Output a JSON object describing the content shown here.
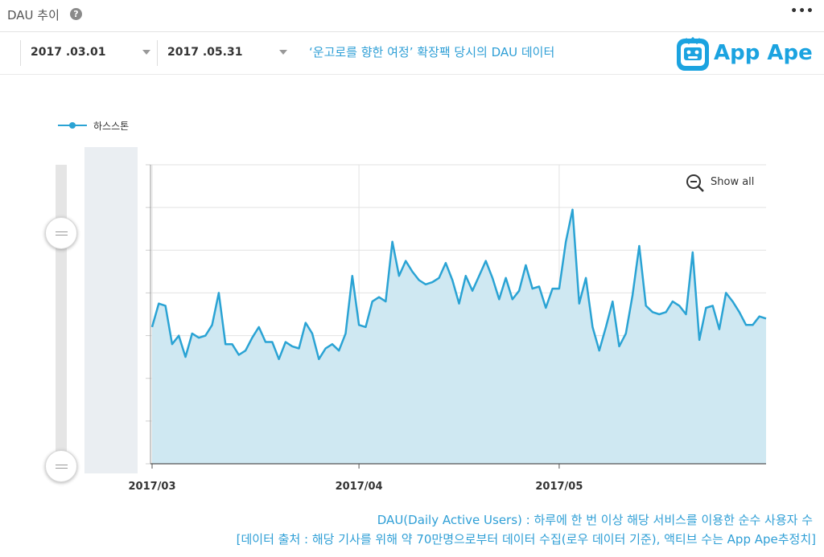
{
  "header": {
    "title": "DAU 추이",
    "help_icon": "question-circle-icon",
    "more_icon": "ellipsis-icon"
  },
  "filters": {
    "start_date": "2017 .03.01",
    "end_date": "2017 .05.31",
    "note": "‘운고로를 향한 여정’ 확장팩 당시의 DAU 데이터"
  },
  "logo": {
    "text": "App Ape",
    "color": "#1ba3e0"
  },
  "zoom": {
    "show_all_label": "Show all"
  },
  "chart_data": {
    "type": "area",
    "title": "",
    "xlabel": "",
    "ylabel": "",
    "y_tick_labels_shown": false,
    "ylim": [
      0,
      70
    ],
    "x_tick_labels": [
      "2017/03",
      "2017/04",
      "2017/05"
    ],
    "x_tick_day_index": [
      0,
      31,
      61
    ],
    "series": [
      {
        "name": "하스스톤",
        "color": "#2aa3d4",
        "fill": "#cfe8f2",
        "values": [
          32,
          37.5,
          37,
          28,
          30,
          25,
          30.5,
          29.5,
          30,
          32.5,
          40,
          28,
          28,
          25.5,
          26.5,
          29.5,
          32,
          28.5,
          28.5,
          24.5,
          28.5,
          27.5,
          27,
          33,
          30.5,
          24.5,
          27,
          28,
          26.5,
          30.5,
          44,
          32.5,
          32,
          38,
          39,
          38,
          52,
          44,
          47.5,
          45,
          43,
          42,
          42.5,
          43.5,
          47,
          43,
          37.5,
          44,
          40.5,
          44,
          47.5,
          43.5,
          38.5,
          43.5,
          38.5,
          40.5,
          46.5,
          41,
          41.5,
          36.5,
          41,
          41,
          52,
          59.5,
          37.5,
          43.5,
          32,
          26.5,
          32,
          38,
          27.5,
          30.5,
          39.5,
          51,
          37,
          35.5,
          35,
          35.5,
          38,
          37,
          35,
          49.5,
          29,
          36.5,
          37,
          31.5,
          40,
          38,
          35.5,
          32.5,
          32.5,
          34.5,
          34
        ]
      }
    ]
  },
  "footer": {
    "line1": "DAU(Daily Active Users) : 하루에 한 번 이상 해당 서비스를 이용한 순수 사용자 수",
    "line2": "[데이터 출처 : 해당 기사를 위해 약 70만명으로부터 데이터 수집(로우 데이터 기준), 액티브 수는 App Ape추정치]"
  }
}
